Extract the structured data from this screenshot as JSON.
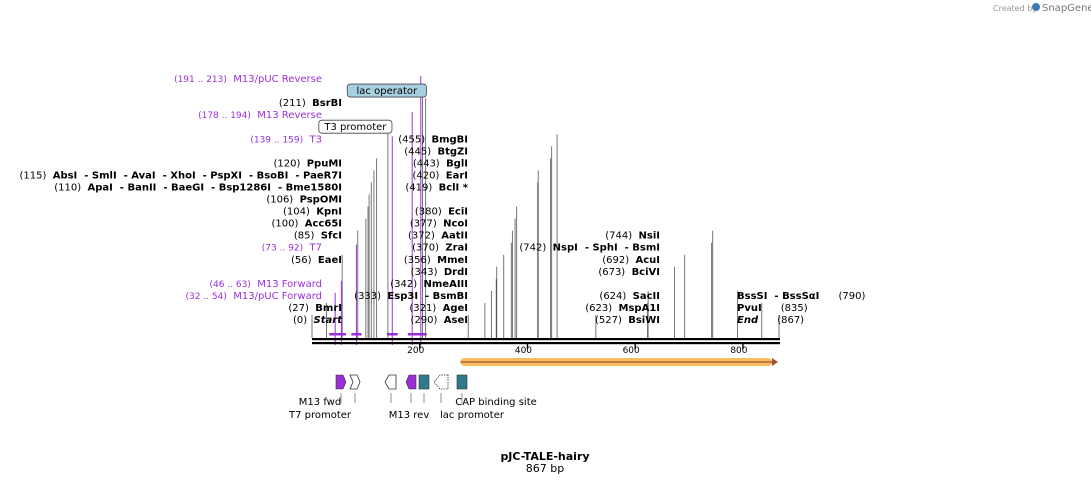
{
  "credit": {
    "prefix": "Created by",
    "brand": "SnapGene"
  },
  "plasmid": {
    "name": "pJC-TALE-hairy",
    "length_label": "867 bp",
    "length": 867
  },
  "axis": {
    "ticks": [
      {
        "pos": 200,
        "label": "200"
      },
      {
        "pos": 400,
        "label": "400"
      },
      {
        "pos": 600,
        "label": "600"
      },
      {
        "pos": 800,
        "label": "800"
      }
    ]
  },
  "colors": {
    "feature": "#9b30d9",
    "orange": "#f5b041",
    "teal": "#2e7b8c",
    "operator": "#a6cfe0"
  },
  "site_rows": [
    {
      "row": 0,
      "items": [
        {
          "num": "(0)",
          "name": "Start",
          "italic": true,
          "pos": 0
        }
      ]
    },
    {
      "row": 1,
      "items": [
        {
          "num": "(27)",
          "name": "BmrI",
          "pos": 27
        }
      ]
    },
    {
      "row": 5,
      "items": [
        {
          "num": "(56)",
          "name": "EaeI",
          "pos": 56
        }
      ]
    },
    {
      "row": 7,
      "items": [
        {
          "num": "(85)",
          "name": "SfcI",
          "pos": 85
        }
      ]
    },
    {
      "row": 8,
      "items": [
        {
          "num": "(100)",
          "name": "Acc65I",
          "pos": 100
        }
      ]
    },
    {
      "row": 9,
      "items": [
        {
          "num": "(104)",
          "name": "KpnI",
          "pos": 104
        }
      ]
    },
    {
      "row": 10,
      "items": [
        {
          "num": "(106)",
          "name": "PspOMI",
          "pos": 106
        }
      ]
    },
    {
      "row": 11,
      "items": [
        {
          "num": "(110)",
          "name": "ApaI",
          "pos": 110
        },
        {
          "name": "BanII",
          "pos": 110
        },
        {
          "name": "BaeGI",
          "pos": 110
        },
        {
          "name": "Bsp1286I",
          "pos": 110
        },
        {
          "name": "Bme1580I",
          "pos": 110
        }
      ]
    },
    {
      "row": 12,
      "items": [
        {
          "num": "(115)",
          "name": "AbsI",
          "pos": 115
        },
        {
          "name": "SmlI",
          "pos": 115
        },
        {
          "name": "AvaI",
          "pos": 115
        },
        {
          "name": "XhoI",
          "pos": 115
        },
        {
          "name": "PspXI",
          "pos": 115
        },
        {
          "name": "BsoBI",
          "pos": 115
        },
        {
          "name": "PaeR7I",
          "pos": 115
        }
      ]
    },
    {
      "row": 13,
      "items": [
        {
          "num": "(120)",
          "name": "PpuMI",
          "pos": 120
        }
      ]
    },
    {
      "row": 18,
      "items": [
        {
          "num": "(211)",
          "name": "BsrBI",
          "pos": 211
        }
      ]
    }
  ],
  "site_rows_mid": [
    {
      "row": 0,
      "items": [
        {
          "num": "(290)",
          "name": "AseI",
          "pos": 290
        }
      ]
    },
    {
      "row": 1,
      "items": [
        {
          "num": "(321)",
          "name": "AgeI",
          "pos": 321
        }
      ]
    },
    {
      "row": 2,
      "items": [
        {
          "num": "(333)",
          "name": "Esp3I",
          "pos": 333
        },
        {
          "name": "BsmBI",
          "pos": 333
        }
      ]
    },
    {
      "row": 3,
      "items": [
        {
          "num": "(342)",
          "name": "NmeAIII",
          "pos": 342
        }
      ]
    },
    {
      "row": 4,
      "items": [
        {
          "num": "(343)",
          "name": "DrdI",
          "pos": 343
        }
      ]
    },
    {
      "row": 5,
      "items": [
        {
          "num": "(356)",
          "name": "MmeI",
          "pos": 356
        }
      ]
    },
    {
      "row": 6,
      "items": [
        {
          "num": "(370)",
          "name": "ZraI",
          "pos": 370
        }
      ]
    },
    {
      "row": 7,
      "items": [
        {
          "num": "(372)",
          "name": "AatII",
          "pos": 372
        }
      ]
    },
    {
      "row": 8,
      "items": [
        {
          "num": "(377)",
          "name": "NcoI",
          "pos": 377
        }
      ]
    },
    {
      "row": 9,
      "items": [
        {
          "num": "(380)",
          "name": "EciI",
          "pos": 380
        }
      ]
    },
    {
      "row": 11,
      "items": [
        {
          "num": "(419)",
          "name": "BclI *",
          "pos": 419
        }
      ]
    },
    {
      "row": 12,
      "items": [
        {
          "num": "(420)",
          "name": "EarI",
          "pos": 420
        }
      ]
    },
    {
      "row": 13,
      "items": [
        {
          "num": "(443)",
          "name": "BglI",
          "pos": 443
        }
      ]
    },
    {
      "row": 14,
      "items": [
        {
          "num": "(445)",
          "name": "BtgZI",
          "pos": 445
        }
      ]
    },
    {
      "row": 15,
      "items": [
        {
          "num": "(455)",
          "name": "BmgBI",
          "pos": 455
        }
      ]
    }
  ],
  "site_rows_right": [
    {
      "row": 0,
      "items": [
        {
          "num": "(527)",
          "name": "BsiWI",
          "pos": 527
        }
      ]
    },
    {
      "row": 1,
      "items": [
        {
          "num": "(623)",
          "name": "MspA1I",
          "pos": 623
        }
      ]
    },
    {
      "row": 2,
      "items": [
        {
          "num": "(624)",
          "name": "SacII",
          "pos": 624
        }
      ]
    },
    {
      "row": 4,
      "items": [
        {
          "num": "(673)",
          "name": "BciVI",
          "pos": 673
        }
      ]
    },
    {
      "row": 5,
      "items": [
        {
          "num": "(692)",
          "name": "AcuI",
          "pos": 692
        }
      ]
    },
    {
      "row": 6,
      "items": [
        {
          "num": "(742)",
          "name": "NspI",
          "pos": 742
        },
        {
          "name": "SphI",
          "pos": 742
        },
        {
          "name": "BsmI",
          "pos": 742
        }
      ]
    },
    {
      "row": 7,
      "items": [
        {
          "num": "(744)",
          "name": "NsiI",
          "pos": 744
        }
      ]
    }
  ],
  "site_rows_end": [
    {
      "row": 0,
      "items": [
        {
          "name": "End",
          "num": "(867)",
          "italic": true,
          "pos": 867
        }
      ]
    },
    {
      "row": 1,
      "items": [
        {
          "name": "PvuI",
          "num": "(835)",
          "pos": 835
        }
      ]
    },
    {
      "row": 2,
      "items": [
        {
          "name": "BssSI",
          "pos": 790
        },
        {
          "name": "BssSαI",
          "num": "(790)",
          "pos": 790
        }
      ]
    }
  ],
  "feature_labels": [
    {
      "range": "(32 .. 54)",
      "name": "M13/pUC Forward",
      "start": 32,
      "end": 54,
      "row": 2
    },
    {
      "range": "(46 .. 63)",
      "name": "M13 Forward",
      "start": 46,
      "end": 63,
      "row": 3
    },
    {
      "range": "(73 .. 92)",
      "name": "T7",
      "start": 73,
      "end": 92,
      "row": 6
    },
    {
      "range": "(139 .. 159)",
      "name": "T3",
      "start": 139,
      "end": 159,
      "row": 15
    },
    {
      "range": "(178 .. 194)",
      "name": "M13 Reverse",
      "start": 178,
      "end": 194,
      "row": 17
    },
    {
      "range": "(191 .. 213)",
      "name": "M13/pUC Reverse",
      "start": 191,
      "end": 213,
      "row": 20
    }
  ],
  "boxed_labels": [
    {
      "name": "T3 promoter",
      "pos": 141,
      "row": 16
    },
    {
      "name": "lac operator",
      "pos": 205,
      "row": 19
    }
  ],
  "bottom_features": [
    {
      "name": "M13 fwd",
      "shape": "arrow-right",
      "color": "#9b30d9",
      "pos": 50
    },
    {
      "name": "T7 promoter",
      "shape": "arrow-right-outline",
      "pos": 78
    },
    {
      "name": "",
      "shape": "arrow-left-outline",
      "pos": 143
    },
    {
      "name": "M13 rev",
      "shape": "arrow-left",
      "color": "#9b30d9",
      "pos": 180
    },
    {
      "name": "",
      "shape": "box",
      "color": "#2e7b8c",
      "pos": 202
    },
    {
      "name": "lac promoter",
      "shape": "arrow-left-dotted",
      "pos": 229
    },
    {
      "name": "CAP binding site",
      "shape": "box",
      "color": "#2e7b8c",
      "pos": 277
    }
  ],
  "orf": {
    "start": 270,
    "end": 867,
    "direction": "right"
  }
}
